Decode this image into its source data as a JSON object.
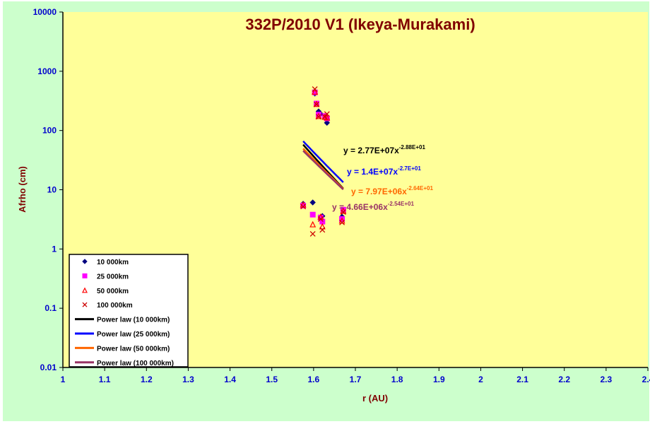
{
  "chart_data": {
    "type": "scatter",
    "title": "332P/2010 V1 (Ikeya-Murakami)",
    "xlabel": "r (AU)",
    "ylabel": "Afrho (cm)",
    "xlim": [
      1,
      2.4
    ],
    "ylim": [
      0.01,
      10000
    ],
    "y_scale": "log",
    "x_ticks": [
      "1",
      "1.1",
      "1.2",
      "1.3",
      "1.4",
      "1.5",
      "1.6",
      "1.7",
      "1.8",
      "1.9",
      "2",
      "2.1",
      "2.2",
      "2.3",
      "2.4"
    ],
    "y_ticks": [
      "0.01",
      "0.1",
      "1",
      "10",
      "100",
      "1000",
      "10000"
    ],
    "grid": false,
    "legend_position": "bottom-left",
    "series": [
      {
        "name": "10 000km",
        "marker": "diamond",
        "color": "#000080",
        "points": [
          [
            1.575,
            5.8
          ],
          [
            1.598,
            6.1
          ],
          [
            1.603,
            420
          ],
          [
            1.607,
            280
          ],
          [
            1.612,
            210
          ],
          [
            1.617,
            190
          ],
          [
            1.621,
            3.6
          ],
          [
            1.627,
            165
          ],
          [
            1.632,
            135
          ],
          [
            1.668,
            3.5
          ],
          [
            1.671,
            4.5
          ]
        ]
      },
      {
        "name": "25 000km",
        "marker": "square",
        "color": "#ff00ff",
        "points": [
          [
            1.575,
            5.4
          ],
          [
            1.598,
            3.8
          ],
          [
            1.603,
            440
          ],
          [
            1.607,
            285
          ],
          [
            1.612,
            185
          ],
          [
            1.617,
            3.4
          ],
          [
            1.621,
            2.9
          ],
          [
            1.627,
            175
          ],
          [
            1.632,
            160
          ],
          [
            1.668,
            3.2
          ],
          [
            1.671,
            4.6
          ]
        ]
      },
      {
        "name": "50 000km",
        "marker": "triangle",
        "color": "#ff0000",
        "points": [
          [
            1.575,
            5.6
          ],
          [
            1.598,
            2.6
          ],
          [
            1.603,
            450
          ],
          [
            1.607,
            280
          ],
          [
            1.612,
            175
          ],
          [
            1.617,
            3.5
          ],
          [
            1.621,
            2.4
          ],
          [
            1.627,
            170
          ],
          [
            1.632,
            165
          ],
          [
            1.668,
            3.0
          ],
          [
            1.671,
            4.4
          ]
        ]
      },
      {
        "name": "100 000km",
        "marker": "x",
        "color": "#cc0000",
        "points": [
          [
            1.575,
            5.2
          ],
          [
            1.598,
            1.8
          ],
          [
            1.603,
            500
          ],
          [
            1.607,
            275
          ],
          [
            1.612,
            170
          ],
          [
            1.617,
            3.2
          ],
          [
            1.621,
            2.1
          ],
          [
            1.627,
            170
          ],
          [
            1.632,
            190
          ],
          [
            1.668,
            2.8
          ],
          [
            1.671,
            4.2
          ]
        ]
      },
      {
        "name": "Power law (10 000km)",
        "type": "line",
        "color": "#000000",
        "equation": "y = 2.77E+07x",
        "exponent": "-2.88E+01",
        "coef": 27700000,
        "power": -28.8,
        "x_range": [
          1.575,
          1.671
        ]
      },
      {
        "name": "Power law (25 000km)",
        "type": "line",
        "color": "#0000ff",
        "equation": "y = 1.4E+07x",
        "exponent": "-2.7E+01",
        "coef": 14000000,
        "power": -27.0,
        "x_range": [
          1.575,
          1.671
        ]
      },
      {
        "name": "Power law (50 000km)",
        "type": "line",
        "color": "#ff6600",
        "equation": "y = 7.97E+06x",
        "exponent": "-2.64E+01",
        "coef": 7970000,
        "power": -26.4,
        "x_range": [
          1.575,
          1.671
        ]
      },
      {
        "name": "Power law (100 000km)",
        "type": "line",
        "color": "#993366",
        "equation": "y = 4.66E+06x",
        "exponent": "-2.54E+01",
        "coef": 4660000,
        "power": -25.4,
        "x_range": [
          1.575,
          1.671
        ]
      }
    ],
    "colors": {
      "frame_bg": "#ccffcc",
      "plot_bg": "#ffff99",
      "title": "#800000",
      "ticks": "#0000cc",
      "eq_1": "#000000",
      "eq_2": "#0000ff",
      "eq_3": "#ff6600",
      "eq_4": "#993366"
    }
  }
}
